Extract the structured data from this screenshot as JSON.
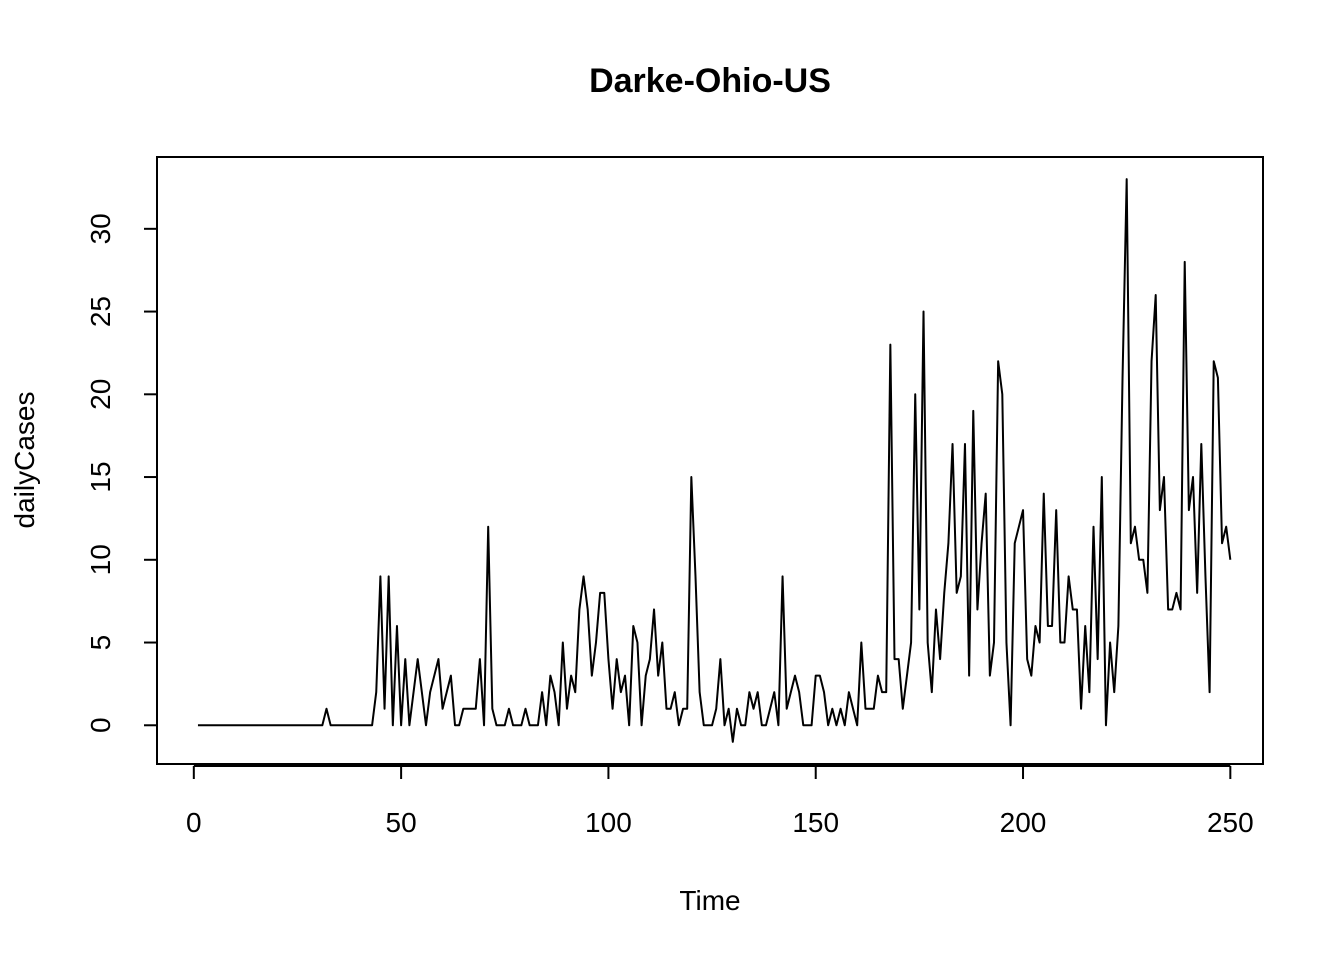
{
  "chart_data": {
    "type": "line",
    "title": "Darke-Ohio-US",
    "xlabel": "Time",
    "ylabel": "dailyCases",
    "xlim": [
      -8.88,
      257.88
    ],
    "ylim": [
      -2.34,
      34.34
    ],
    "x_ticks": [
      0,
      50,
      100,
      150,
      200,
      250
    ],
    "y_ticks": [
      0,
      5,
      10,
      15,
      20,
      25,
      30
    ],
    "x_tick_labels": [
      "0",
      "50",
      "100",
      "150",
      "200",
      "250"
    ],
    "y_tick_labels": [
      "0",
      "5",
      "10",
      "15",
      "20",
      "25",
      "30"
    ],
    "grid": false,
    "legend": "none",
    "line_color": "#000000",
    "series": [
      {
        "x_start": 1,
        "values": [
          0,
          0,
          0,
          0,
          0,
          0,
          0,
          0,
          0,
          0,
          0,
          0,
          0,
          0,
          0,
          0,
          0,
          0,
          0,
          0,
          0,
          0,
          0,
          0,
          0,
          0,
          0,
          0,
          0,
          0,
          0,
          1,
          0,
          0,
          0,
          0,
          0,
          0,
          0,
          0,
          0,
          0,
          0,
          2,
          9,
          1,
          9,
          0,
          6,
          0,
          4,
          0,
          2,
          4,
          2,
          0,
          2,
          3,
          4,
          1,
          2,
          3,
          0,
          0,
          1,
          1,
          1,
          1,
          4,
          0,
          12,
          1,
          0,
          0,
          0,
          1,
          0,
          0,
          0,
          1,
          0,
          0,
          0,
          2,
          0,
          3,
          2,
          0,
          5,
          1,
          3,
          2,
          7,
          9,
          7,
          3,
          5,
          8,
          8,
          4,
          1,
          4,
          2,
          3,
          0,
          6,
          5,
          0,
          3,
          4,
          7,
          3,
          5,
          1,
          1,
          2,
          0,
          1,
          1,
          15,
          9,
          2,
          0,
          0,
          0,
          1,
          4,
          0,
          1,
          -1,
          1,
          0,
          0,
          2,
          1,
          2,
          0,
          0,
          1,
          2,
          0,
          9,
          1,
          2,
          3,
          2,
          0,
          0,
          0,
          3,
          3,
          2,
          0,
          1,
          0,
          1,
          0,
          2,
          1,
          0,
          5,
          1,
          1,
          1,
          3,
          2,
          2,
          23,
          4,
          4,
          1,
          3,
          5,
          20,
          7,
          25,
          5,
          2,
          7,
          4,
          8,
          11,
          17,
          8,
          9,
          17,
          3,
          19,
          7,
          11,
          14,
          3,
          5,
          22,
          20,
          5,
          0,
          11,
          12,
          13,
          4,
          3,
          6,
          5,
          14,
          6,
          6,
          13,
          5,
          5,
          9,
          7,
          7,
          1,
          6,
          2,
          12,
          4,
          15,
          0,
          5,
          2,
          6,
          21,
          33,
          11,
          12,
          10,
          10,
          8,
          22,
          26,
          13,
          15,
          7,
          7,
          8,
          7,
          28,
          13,
          15,
          8,
          17,
          9,
          2,
          22,
          21,
          11,
          12,
          10
        ]
      }
    ]
  }
}
